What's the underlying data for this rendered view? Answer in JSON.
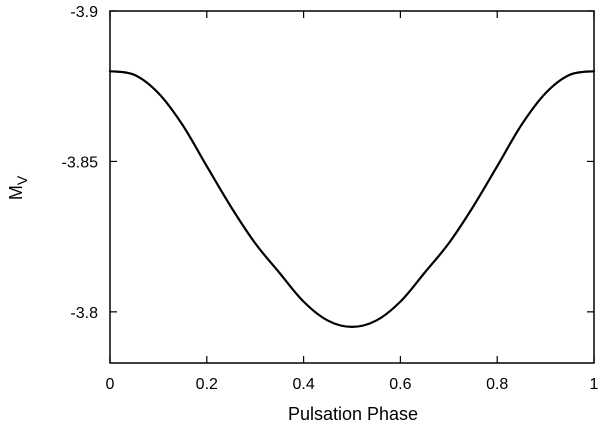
{
  "chart_data": {
    "type": "line",
    "xlabel": "Pulsation Phase",
    "ylabel_main": "M",
    "ylabel_sub": "V",
    "xlim": [
      0,
      1
    ],
    "ylim": [
      -3.9,
      -3.783
    ],
    "y_inverted": true,
    "xticks": [
      0,
      0.2,
      0.4,
      0.6,
      0.8,
      1
    ],
    "xtick_labels": [
      "0",
      "0.2",
      "0.4",
      "0.6",
      "0.8",
      "1"
    ],
    "yticks": [
      -3.9,
      -3.85,
      -3.8
    ],
    "ytick_labels": [
      "-3.9",
      "-3.85",
      "-3.8"
    ],
    "grid": false,
    "series": [
      {
        "color": "#000000",
        "x": [
          0,
          0.05,
          0.1,
          0.15,
          0.2,
          0.25,
          0.3,
          0.35,
          0.4,
          0.45,
          0.5,
          0.55,
          0.6,
          0.65,
          0.7,
          0.75,
          0.8,
          0.85,
          0.9,
          0.95,
          1
        ],
        "y": [
          -3.88,
          -3.8788,
          -3.8727,
          -3.8621,
          -3.8484,
          -3.8349,
          -3.8228,
          -3.813,
          -3.8034,
          -3.7971,
          -3.795,
          -3.7971,
          -3.8034,
          -3.813,
          -3.8228,
          -3.8349,
          -3.8484,
          -3.8621,
          -3.8727,
          -3.8788,
          -3.88
        ]
      }
    ]
  }
}
